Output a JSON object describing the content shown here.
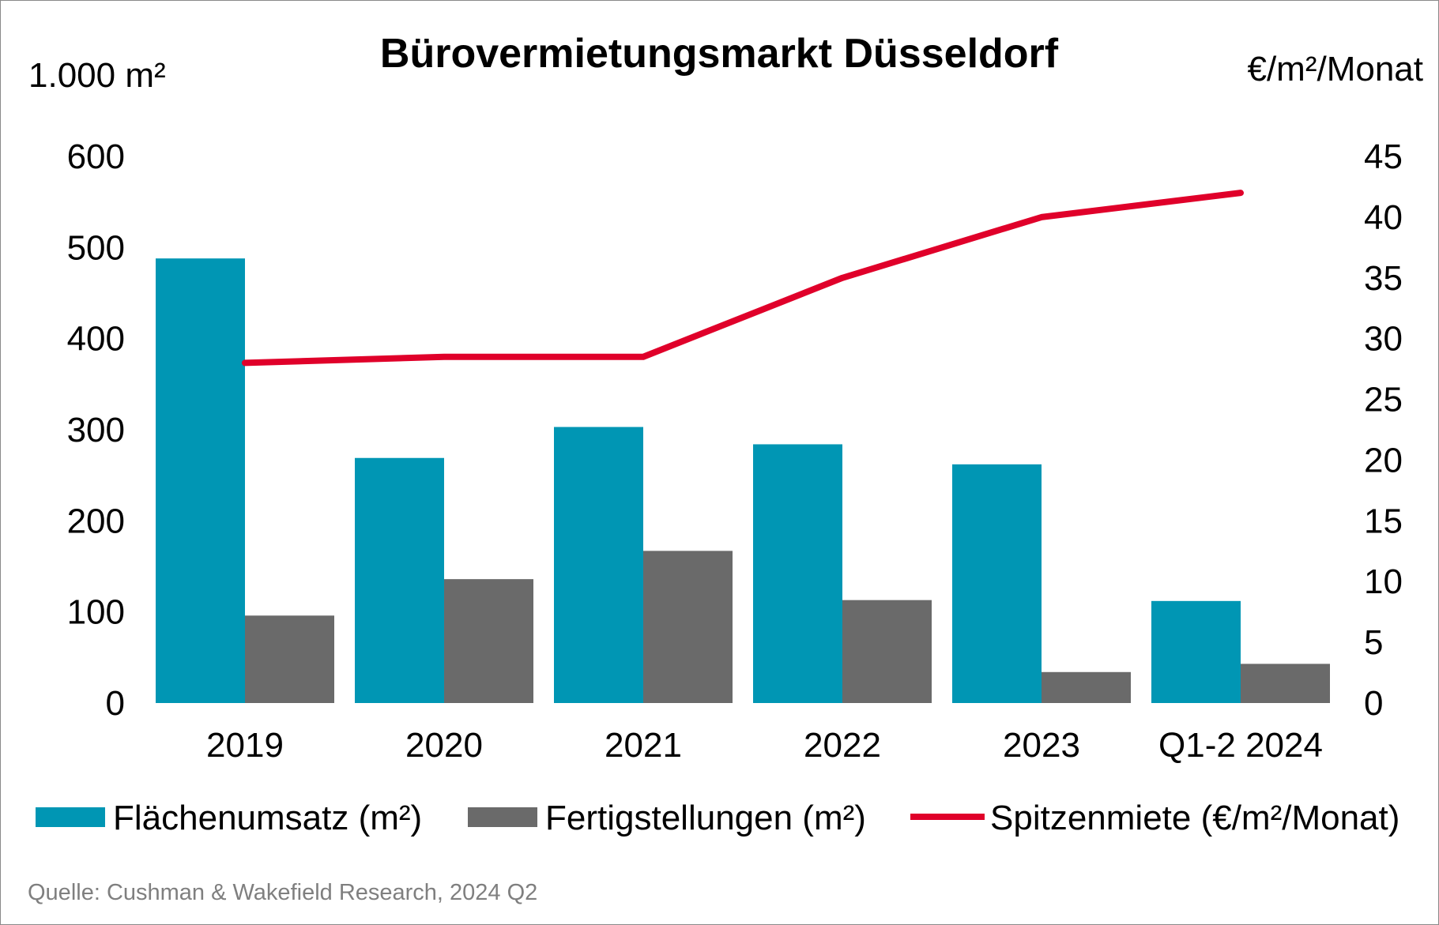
{
  "chart_data": {
    "type": "bar",
    "title": "Bürovermietungsmarkt Düsseldorf",
    "y_left_unit": "1.000 m²",
    "y_right_unit": "€/m²/Monat",
    "categories": [
      "2019",
      "2020",
      "2021",
      "2022",
      "2023",
      "Q1-2 2024"
    ],
    "ylim_left": [
      0,
      600
    ],
    "yticks_left": [
      0,
      100,
      200,
      300,
      400,
      500,
      600
    ],
    "ylim_right": [
      0,
      45
    ],
    "yticks_right": [
      0,
      5,
      10,
      15,
      20,
      25,
      30,
      35,
      40,
      45
    ],
    "series": [
      {
        "name": "Flächenumsatz (m²)",
        "type": "bar",
        "axis": "left",
        "color": "#0096b4",
        "values": [
          488,
          269,
          303,
          284,
          262,
          112
        ]
      },
      {
        "name": "Fertigstellungen (m²)",
        "type": "bar",
        "axis": "left",
        "color": "#6a6a6a",
        "values": [
          96,
          136,
          167,
          113,
          34,
          43
        ]
      },
      {
        "name": "Spitzenmiete (€/m²/Monat)",
        "type": "line",
        "axis": "right",
        "color": "#e0002a",
        "values": [
          28,
          28.5,
          28.5,
          35,
          40,
          42
        ]
      }
    ],
    "grid": false,
    "legend_position": "bottom",
    "source": "Quelle: Cushman & Wakefield Research, 2024 Q2"
  }
}
